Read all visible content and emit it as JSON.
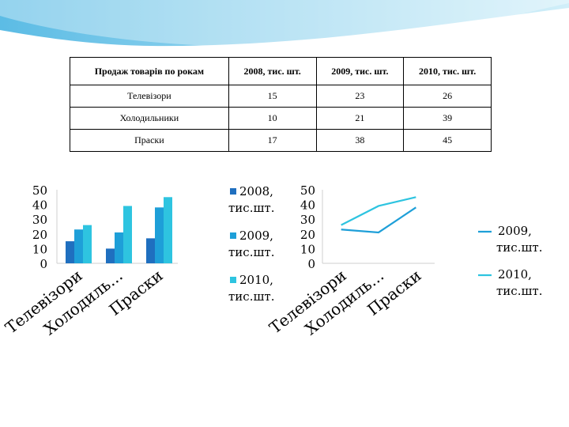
{
  "table": {
    "header": [
      "Продаж товарів по рокам",
      "2008, тис. шт.",
      "2009, тис. шт.",
      "2010, тис. шт."
    ],
    "rows": [
      [
        "Телевізори",
        "15",
        "23",
        "26"
      ],
      [
        "Холодильники",
        "10",
        "21",
        "39"
      ],
      [
        "Праски",
        "17",
        "38",
        "45"
      ]
    ]
  },
  "chart_data": [
    {
      "type": "bar",
      "categories": [
        "Телевізори",
        "Холодильники",
        "Праски"
      ],
      "category_labels": [
        "Телевізори",
        "Холодиль...",
        "Праски"
      ],
      "series": [
        {
          "name": "2008, тис.шт.",
          "values": [
            15,
            10,
            17
          ],
          "color": "#1f6fbf"
        },
        {
          "name": "2009, тис.шт.",
          "values": [
            23,
            21,
            38
          ],
          "color": "#1e9fd8"
        },
        {
          "name": "2010, тис.шт.",
          "values": [
            26,
            39,
            45
          ],
          "color": "#2ec4e0"
        }
      ],
      "ylim": [
        0,
        50
      ],
      "yticks": [
        "0",
        "10",
        "20",
        "30",
        "40",
        "50"
      ],
      "legend": "right"
    },
    {
      "type": "line",
      "categories": [
        "Телевізори",
        "Холодильники",
        "Праски"
      ],
      "category_labels": [
        "Телевізори",
        "Холодиль...",
        "Праски"
      ],
      "series": [
        {
          "name": "2009, тис.шт.",
          "values": [
            23,
            21,
            38
          ],
          "color": "#1e9fd8"
        },
        {
          "name": "2010, тис.шт.",
          "values": [
            26,
            39,
            45
          ],
          "color": "#2ec4e0"
        }
      ],
      "ylim": [
        0,
        50
      ],
      "yticks": [
        "0",
        "10",
        "20",
        "30",
        "40",
        "50"
      ],
      "legend": "right"
    }
  ],
  "colors": {
    "banner": "#7ec8e8",
    "grid": "#cfcfcf"
  }
}
